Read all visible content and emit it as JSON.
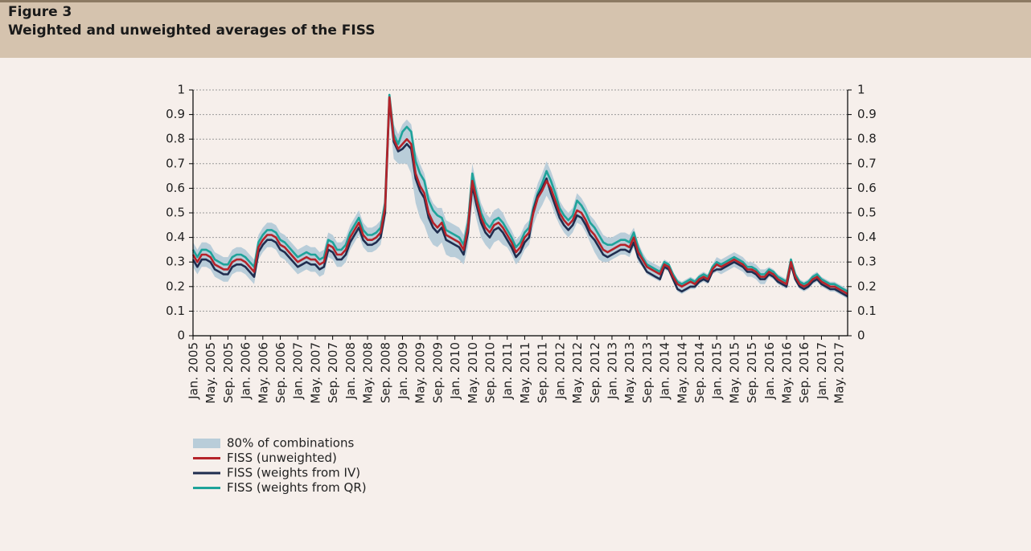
{
  "chart_data": {
    "type": "line",
    "figure_label": "Figure 3",
    "title": "Weighted and unweighted averages of the FISS",
    "x": [
      "2005-01",
      "2005-02",
      "2005-03",
      "2005-04",
      "2005-05",
      "2005-06",
      "2005-07",
      "2005-08",
      "2005-09",
      "2005-10",
      "2005-11",
      "2005-12",
      "2006-01",
      "2006-02",
      "2006-03",
      "2006-04",
      "2006-05",
      "2006-06",
      "2006-07",
      "2006-08",
      "2006-09",
      "2006-10",
      "2006-11",
      "2006-12",
      "2007-01",
      "2007-02",
      "2007-03",
      "2007-04",
      "2007-05",
      "2007-06",
      "2007-07",
      "2007-08",
      "2007-09",
      "2007-10",
      "2007-11",
      "2007-12",
      "2008-01",
      "2008-02",
      "2008-03",
      "2008-04",
      "2008-05",
      "2008-06",
      "2008-07",
      "2008-08",
      "2008-09",
      "2008-10",
      "2008-11",
      "2008-12",
      "2009-01",
      "2009-02",
      "2009-03",
      "2009-04",
      "2009-05",
      "2009-06",
      "2009-07",
      "2009-08",
      "2009-09",
      "2009-10",
      "2009-11",
      "2009-12",
      "2010-01",
      "2010-02",
      "2010-03",
      "2010-04",
      "2010-05",
      "2010-06",
      "2010-07",
      "2010-08",
      "2010-09",
      "2010-10",
      "2010-11",
      "2010-12",
      "2011-01",
      "2011-02",
      "2011-03",
      "2011-04",
      "2011-05",
      "2011-06",
      "2011-07",
      "2011-08",
      "2011-09",
      "2011-10",
      "2011-11",
      "2011-12",
      "2012-01",
      "2012-02",
      "2012-03",
      "2012-04",
      "2012-05",
      "2012-06",
      "2012-07",
      "2012-08",
      "2012-09",
      "2012-10",
      "2012-11",
      "2012-12",
      "2013-01",
      "2013-02",
      "2013-03",
      "2013-04",
      "2013-05",
      "2013-06",
      "2013-07",
      "2013-08",
      "2013-09",
      "2013-10",
      "2013-11",
      "2013-12",
      "2014-01",
      "2014-02",
      "2014-03",
      "2014-04",
      "2014-05",
      "2014-06",
      "2014-07",
      "2014-08",
      "2014-09",
      "2014-10",
      "2014-11",
      "2014-12",
      "2015-01",
      "2015-02",
      "2015-03",
      "2015-04",
      "2015-05",
      "2015-06",
      "2015-07",
      "2015-08",
      "2015-09",
      "2015-10",
      "2015-11",
      "2015-12",
      "2016-01",
      "2016-02",
      "2016-03",
      "2016-04",
      "2016-05",
      "2016-06",
      "2016-07",
      "2016-08",
      "2016-09",
      "2016-10",
      "2016-11",
      "2016-12",
      "2017-01",
      "2017-02",
      "2017-03",
      "2017-04",
      "2017-05",
      "2017-06",
      "2017-07"
    ],
    "xticks": [
      {
        "value": "2005-01",
        "label": "Jan. 2005"
      },
      {
        "value": "2005-05",
        "label": "May. 2005"
      },
      {
        "value": "2005-09",
        "label": "Sep. 2005"
      },
      {
        "value": "2006-01",
        "label": "Jan. 2006"
      },
      {
        "value": "2006-05",
        "label": "May. 2006"
      },
      {
        "value": "2006-09",
        "label": "Sep. 2006"
      },
      {
        "value": "2007-01",
        "label": "Jan. 2007"
      },
      {
        "value": "2007-05",
        "label": "May. 2007"
      },
      {
        "value": "2007-09",
        "label": "Sep. 2007"
      },
      {
        "value": "2008-01",
        "label": "Jan. 2008"
      },
      {
        "value": "2008-05",
        "label": "May. 2008"
      },
      {
        "value": "2008-09",
        "label": "Sep. 2008"
      },
      {
        "value": "2009-01",
        "label": "Jan. 2009"
      },
      {
        "value": "2009-05",
        "label": "May. 2009"
      },
      {
        "value": "2009-09",
        "label": "Sep. 2009"
      },
      {
        "value": "2010-01",
        "label": "Jan. 2010"
      },
      {
        "value": "2010-05",
        "label": "May. 2010"
      },
      {
        "value": "2010-09",
        "label": "Sep. 2010"
      },
      {
        "value": "2011-01",
        "label": "Jan. 2011"
      },
      {
        "value": "2011-05",
        "label": "May. 2011"
      },
      {
        "value": "2011-09",
        "label": "Sep. 2011"
      },
      {
        "value": "2012-01",
        "label": "Jan. 2012"
      },
      {
        "value": "2012-05",
        "label": "May. 2012"
      },
      {
        "value": "2012-09",
        "label": "Sep. 2012"
      },
      {
        "value": "2013-01",
        "label": "Jan. 2013"
      },
      {
        "value": "2013-05",
        "label": "May. 2013"
      },
      {
        "value": "2013-09",
        "label": "Sep. 2013"
      },
      {
        "value": "2014-01",
        "label": "Jan. 2014"
      },
      {
        "value": "2014-05",
        "label": "May. 2014"
      },
      {
        "value": "2014-09",
        "label": "Sep. 2014"
      },
      {
        "value": "2015-01",
        "label": "Jan. 2015"
      },
      {
        "value": "2015-05",
        "label": "May. 2015"
      },
      {
        "value": "2015-09",
        "label": "Sep. 2015"
      },
      {
        "value": "2016-01",
        "label": "Jan. 2016"
      },
      {
        "value": "2016-05",
        "label": "May. 2016"
      },
      {
        "value": "2016-09",
        "label": "Sep. 2016"
      },
      {
        "value": "2017-01",
        "label": "Jan. 2017"
      },
      {
        "value": "2017-05",
        "label": "May. 2017"
      }
    ],
    "ylim": [
      0,
      1
    ],
    "yticks": [
      0,
      0.1,
      0.2,
      0.3,
      0.4,
      0.5,
      0.6,
      0.7,
      0.8,
      0.9,
      1
    ],
    "y2lim": [
      0,
      1
    ],
    "y2ticks": [
      0,
      0.1,
      0.2,
      0.3,
      0.4,
      0.5,
      0.6,
      0.7,
      0.8,
      0.9,
      1
    ],
    "grid": true,
    "band": {
      "name": "80% of combinations",
      "color": "#b9cdd9",
      "lower": [
        0.28,
        0.25,
        0.28,
        0.28,
        0.27,
        0.24,
        0.23,
        0.22,
        0.22,
        0.25,
        0.26,
        0.26,
        0.25,
        0.23,
        0.21,
        0.31,
        0.34,
        0.36,
        0.36,
        0.35,
        0.32,
        0.31,
        0.29,
        0.27,
        0.25,
        0.26,
        0.27,
        0.26,
        0.26,
        0.24,
        0.25,
        0.32,
        0.31,
        0.28,
        0.28,
        0.3,
        0.35,
        0.38,
        0.41,
        0.36,
        0.34,
        0.34,
        0.35,
        0.37,
        0.47,
        0.9,
        0.72,
        0.7,
        0.7,
        0.7,
        0.66,
        0.54,
        0.48,
        0.45,
        0.4,
        0.37,
        0.36,
        0.38,
        0.33,
        0.32,
        0.32,
        0.31,
        0.29,
        0.36,
        0.55,
        0.47,
        0.4,
        0.37,
        0.35,
        0.38,
        0.39,
        0.37,
        0.36,
        0.33,
        0.29,
        0.31,
        0.35,
        0.37,
        0.45,
        0.5,
        0.53,
        0.57,
        0.54,
        0.49,
        0.45,
        0.42,
        0.4,
        0.42,
        0.46,
        0.45,
        0.42,
        0.38,
        0.34,
        0.31,
        0.3,
        0.3,
        0.31,
        0.32,
        0.33,
        0.33,
        0.32,
        0.36,
        0.3,
        0.28,
        0.25,
        0.24,
        0.23,
        0.22,
        0.27,
        0.26,
        0.22,
        0.18,
        0.17,
        0.18,
        0.19,
        0.19,
        0.21,
        0.22,
        0.21,
        0.25,
        0.26,
        0.25,
        0.26,
        0.27,
        0.28,
        0.27,
        0.26,
        0.24,
        0.24,
        0.23,
        0.21,
        0.21,
        0.24,
        0.23,
        0.21,
        0.2,
        0.19,
        0.28,
        0.22,
        0.19,
        0.18,
        0.19,
        0.21,
        0.22,
        0.2,
        0.19,
        0.18,
        0.18,
        0.17,
        0.16,
        0.15
      ],
      "upper": [
        0.38,
        0.35,
        0.38,
        0.38,
        0.37,
        0.34,
        0.33,
        0.32,
        0.32,
        0.35,
        0.36,
        0.36,
        0.35,
        0.33,
        0.31,
        0.41,
        0.44,
        0.46,
        0.46,
        0.45,
        0.42,
        0.41,
        0.39,
        0.37,
        0.35,
        0.36,
        0.37,
        0.36,
        0.36,
        0.34,
        0.35,
        0.42,
        0.41,
        0.38,
        0.38,
        0.4,
        0.45,
        0.48,
        0.51,
        0.46,
        0.44,
        0.44,
        0.45,
        0.47,
        0.57,
        0.99,
        0.86,
        0.82,
        0.86,
        0.88,
        0.86,
        0.75,
        0.7,
        0.66,
        0.58,
        0.54,
        0.52,
        0.52,
        0.47,
        0.46,
        0.45,
        0.44,
        0.41,
        0.5,
        0.7,
        0.61,
        0.54,
        0.5,
        0.48,
        0.51,
        0.52,
        0.5,
        0.46,
        0.43,
        0.39,
        0.41,
        0.45,
        0.47,
        0.56,
        0.62,
        0.66,
        0.71,
        0.67,
        0.62,
        0.55,
        0.52,
        0.5,
        0.52,
        0.58,
        0.56,
        0.53,
        0.49,
        0.47,
        0.44,
        0.41,
        0.4,
        0.4,
        0.41,
        0.42,
        0.42,
        0.41,
        0.44,
        0.38,
        0.34,
        0.31,
        0.3,
        0.29,
        0.28,
        0.31,
        0.3,
        0.26,
        0.23,
        0.22,
        0.23,
        0.24,
        0.23,
        0.25,
        0.26,
        0.25,
        0.29,
        0.32,
        0.31,
        0.32,
        0.33,
        0.34,
        0.33,
        0.32,
        0.3,
        0.3,
        0.29,
        0.27,
        0.27,
        0.28,
        0.27,
        0.25,
        0.24,
        0.23,
        0.32,
        0.26,
        0.23,
        0.22,
        0.23,
        0.25,
        0.26,
        0.24,
        0.23,
        0.22,
        0.22,
        0.21,
        0.2,
        0.19
      ]
    },
    "series": [
      {
        "name": "FISS (unweighted)",
        "color": "#b5232a",
        "values": [
          0.33,
          0.3,
          0.33,
          0.33,
          0.32,
          0.29,
          0.28,
          0.27,
          0.27,
          0.3,
          0.31,
          0.31,
          0.3,
          0.28,
          0.26,
          0.36,
          0.39,
          0.41,
          0.41,
          0.4,
          0.37,
          0.36,
          0.34,
          0.32,
          0.3,
          0.31,
          0.32,
          0.31,
          0.31,
          0.29,
          0.3,
          0.37,
          0.36,
          0.33,
          0.33,
          0.35,
          0.4,
          0.43,
          0.46,
          0.41,
          0.39,
          0.39,
          0.4,
          0.42,
          0.52,
          0.97,
          0.8,
          0.76,
          0.78,
          0.8,
          0.78,
          0.66,
          0.61,
          0.58,
          0.5,
          0.46,
          0.44,
          0.46,
          0.41,
          0.4,
          0.39,
          0.38,
          0.35,
          0.44,
          0.63,
          0.55,
          0.48,
          0.44,
          0.42,
          0.45,
          0.46,
          0.44,
          0.41,
          0.38,
          0.34,
          0.36,
          0.4,
          0.42,
          0.5,
          0.56,
          0.59,
          0.63,
          0.6,
          0.55,
          0.5,
          0.47,
          0.45,
          0.47,
          0.51,
          0.5,
          0.47,
          0.43,
          0.41,
          0.38,
          0.35,
          0.34,
          0.35,
          0.36,
          0.37,
          0.37,
          0.36,
          0.4,
          0.34,
          0.31,
          0.28,
          0.27,
          0.26,
          0.25,
          0.29,
          0.28,
          0.24,
          0.21,
          0.2,
          0.21,
          0.22,
          0.21,
          0.23,
          0.24,
          0.23,
          0.27,
          0.29,
          0.28,
          0.29,
          0.3,
          0.31,
          0.3,
          0.29,
          0.27,
          0.27,
          0.26,
          0.24,
          0.24,
          0.26,
          0.25,
          0.23,
          0.22,
          0.21,
          0.3,
          0.24,
          0.21,
          0.2,
          0.21,
          0.23,
          0.24,
          0.22,
          0.21,
          0.2,
          0.2,
          0.19,
          0.18,
          0.17
        ]
      },
      {
        "name": "FISS (weights from IV)",
        "color": "#1f2d4f",
        "values": [
          0.31,
          0.28,
          0.31,
          0.31,
          0.3,
          0.27,
          0.26,
          0.25,
          0.25,
          0.28,
          0.29,
          0.29,
          0.28,
          0.26,
          0.24,
          0.34,
          0.37,
          0.39,
          0.39,
          0.38,
          0.35,
          0.34,
          0.32,
          0.3,
          0.28,
          0.29,
          0.3,
          0.29,
          0.29,
          0.27,
          0.28,
          0.35,
          0.34,
          0.31,
          0.31,
          0.33,
          0.38,
          0.41,
          0.44,
          0.39,
          0.37,
          0.37,
          0.38,
          0.4,
          0.5,
          0.96,
          0.79,
          0.75,
          0.76,
          0.78,
          0.76,
          0.64,
          0.59,
          0.56,
          0.48,
          0.44,
          0.42,
          0.44,
          0.39,
          0.38,
          0.37,
          0.36,
          0.33,
          0.42,
          0.61,
          0.53,
          0.46,
          0.42,
          0.4,
          0.43,
          0.44,
          0.42,
          0.39,
          0.36,
          0.32,
          0.34,
          0.38,
          0.4,
          0.51,
          0.57,
          0.6,
          0.64,
          0.58,
          0.53,
          0.48,
          0.45,
          0.43,
          0.45,
          0.49,
          0.48,
          0.45,
          0.41,
          0.39,
          0.36,
          0.33,
          0.32,
          0.33,
          0.34,
          0.35,
          0.35,
          0.34,
          0.38,
          0.32,
          0.29,
          0.26,
          0.25,
          0.24,
          0.23,
          0.28,
          0.27,
          0.23,
          0.19,
          0.18,
          0.19,
          0.2,
          0.2,
          0.22,
          0.23,
          0.22,
          0.26,
          0.27,
          0.27,
          0.28,
          0.29,
          0.3,
          0.29,
          0.28,
          0.26,
          0.26,
          0.25,
          0.23,
          0.23,
          0.25,
          0.24,
          0.22,
          0.21,
          0.2,
          0.29,
          0.23,
          0.2,
          0.19,
          0.2,
          0.22,
          0.23,
          0.21,
          0.2,
          0.19,
          0.19,
          0.18,
          0.17,
          0.16
        ]
      },
      {
        "name": "FISS (weights from QR)",
        "color": "#1fa39a",
        "values": [
          0.35,
          0.32,
          0.35,
          0.35,
          0.34,
          0.31,
          0.3,
          0.29,
          0.29,
          0.32,
          0.33,
          0.33,
          0.32,
          0.3,
          0.28,
          0.38,
          0.41,
          0.43,
          0.43,
          0.42,
          0.39,
          0.38,
          0.36,
          0.34,
          0.32,
          0.33,
          0.34,
          0.33,
          0.33,
          0.31,
          0.32,
          0.39,
          0.38,
          0.35,
          0.35,
          0.37,
          0.42,
          0.45,
          0.48,
          0.43,
          0.41,
          0.41,
          0.42,
          0.44,
          0.54,
          0.98,
          0.82,
          0.78,
          0.83,
          0.85,
          0.83,
          0.71,
          0.66,
          0.63,
          0.55,
          0.51,
          0.49,
          0.48,
          0.43,
          0.42,
          0.41,
          0.4,
          0.37,
          0.46,
          0.66,
          0.57,
          0.5,
          0.46,
          0.44,
          0.47,
          0.48,
          0.46,
          0.43,
          0.4,
          0.36,
          0.38,
          0.42,
          0.44,
          0.52,
          0.58,
          0.62,
          0.67,
          0.63,
          0.58,
          0.52,
          0.49,
          0.47,
          0.49,
          0.55,
          0.53,
          0.5,
          0.46,
          0.44,
          0.41,
          0.38,
          0.37,
          0.37,
          0.38,
          0.39,
          0.39,
          0.38,
          0.42,
          0.36,
          0.32,
          0.29,
          0.28,
          0.27,
          0.26,
          0.3,
          0.29,
          0.25,
          0.22,
          0.21,
          0.22,
          0.23,
          0.22,
          0.24,
          0.25,
          0.24,
          0.28,
          0.3,
          0.29,
          0.3,
          0.31,
          0.32,
          0.31,
          0.3,
          0.28,
          0.28,
          0.27,
          0.25,
          0.25,
          0.27,
          0.26,
          0.24,
          0.23,
          0.22,
          0.31,
          0.25,
          0.22,
          0.21,
          0.22,
          0.24,
          0.25,
          0.23,
          0.22,
          0.21,
          0.21,
          0.2,
          0.19,
          0.18
        ]
      }
    ]
  }
}
